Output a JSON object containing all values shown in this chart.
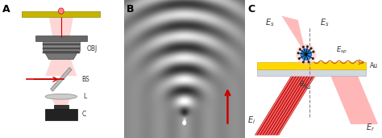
{
  "panel_labels": [
    "A",
    "B",
    "C"
  ],
  "bg_color": "#ffffff",
  "label_fontsize": 9,
  "fig_width": 4.74,
  "fig_height": 1.71,
  "obj_label": "OBJ",
  "bs_label": "BS",
  "l_label": "L",
  "c_label": "C",
  "au_label": "Au",
  "gold_color": "#FFD700",
  "glass_color": "#d0d8e0",
  "red_color": "#cc0000",
  "pink_color": "#ffaaaa",
  "dashed_color": "#888888"
}
